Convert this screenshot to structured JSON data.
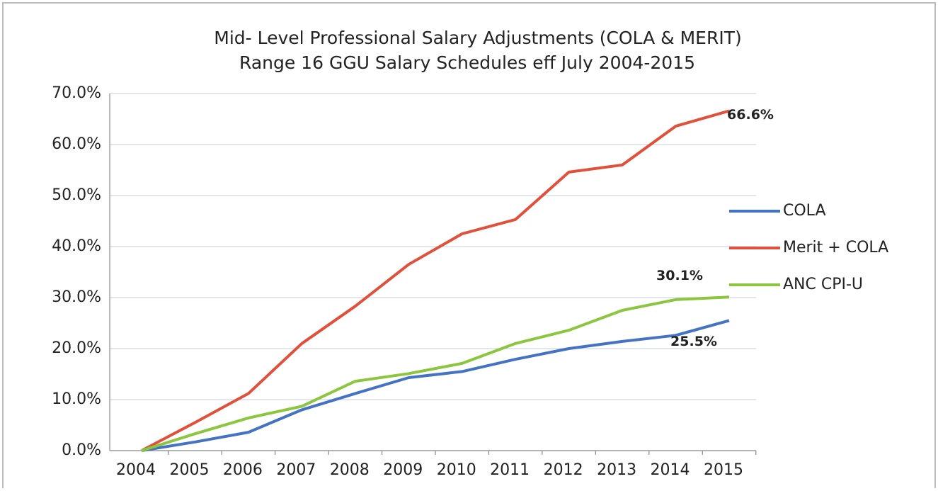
{
  "chart_data": {
    "type": "line",
    "title": "Mid- Level Professional  Salary Adjustments (COLA & MERIT)",
    "subtitle": "Range 16 GGU Salary Schedules eff  July 2004-2015",
    "categories": [
      "2004",
      "2005",
      "2006",
      "2007",
      "2008",
      "2009",
      "2010",
      "2011",
      "2012",
      "2013",
      "2014",
      "2015"
    ],
    "series": [
      {
        "name": "COLA",
        "color": "#4472c4",
        "values": [
          0,
          1.7,
          3.6,
          8.0,
          11.2,
          14.3,
          15.5,
          17.9,
          20.0,
          21.4,
          22.6,
          25.5
        ],
        "value_labels": [
          null,
          null,
          null,
          null,
          null,
          null,
          null,
          null,
          null,
          null,
          null,
          "25.5%"
        ]
      },
      {
        "name": "Merit + COLA",
        "color": "#e0503a",
        "values": [
          0,
          5.5,
          11.2,
          21.0,
          28.3,
          36.5,
          42.5,
          45.3,
          54.6,
          56.0,
          63.6,
          66.6
        ],
        "value_labels": [
          null,
          null,
          null,
          null,
          null,
          null,
          null,
          null,
          null,
          null,
          null,
          "66.6%"
        ]
      },
      {
        "name": "ANC CPI-U",
        "color": "#8cc63f",
        "values": [
          0,
          3.3,
          6.4,
          8.7,
          13.6,
          15.1,
          17.1,
          21.0,
          23.6,
          27.5,
          29.6,
          30.1
        ],
        "value_labels": [
          null,
          null,
          null,
          null,
          null,
          null,
          null,
          null,
          null,
          null,
          null,
          "30.1%"
        ]
      }
    ],
    "ylim": [
      0,
      70
    ],
    "yticks": [
      {
        "value": 0,
        "label": "0.0%"
      },
      {
        "value": 10,
        "label": "10.0%"
      },
      {
        "value": 20,
        "label": "20.0%"
      },
      {
        "value": 30,
        "label": "30.0%"
      },
      {
        "value": 40,
        "label": "40.0%"
      },
      {
        "value": 50,
        "label": "50.0%"
      },
      {
        "value": 60,
        "label": "60.0%"
      },
      {
        "value": 70,
        "label": "70.0%"
      }
    ],
    "grid": true,
    "legend": "right"
  }
}
